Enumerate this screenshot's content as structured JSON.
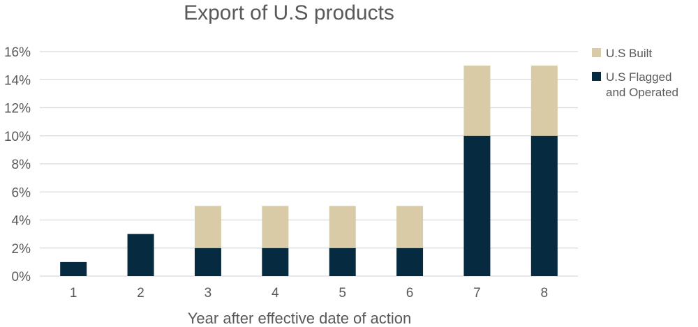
{
  "chart_data": {
    "type": "bar",
    "stacked": true,
    "title": "Export of U.S products",
    "xlabel": "Year after effective date of action",
    "ylabel": "",
    "categories": [
      "1",
      "2",
      "3",
      "4",
      "5",
      "6",
      "7",
      "8"
    ],
    "series": [
      {
        "name": "U.S Flagged and Operated",
        "values": [
          1,
          3,
          2,
          2,
          2,
          2,
          10,
          10
        ],
        "color": "#062a40"
      },
      {
        "name": "U.S Built",
        "values": [
          0,
          0,
          3,
          3,
          3,
          3,
          5,
          5
        ],
        "color": "#d8cba5"
      }
    ],
    "ylim": [
      0,
      16
    ],
    "yticks": [
      "0%",
      "2%",
      "4%",
      "6%",
      "8%",
      "10%",
      "12%",
      "14%",
      "16%"
    ],
    "grid": true,
    "legend_position": "right"
  },
  "legend": {
    "items": [
      {
        "label_lines": [
          "U.S Built"
        ],
        "color": "#d8cba5"
      },
      {
        "label_lines": [
          "U.S Flagged",
          "and Operated"
        ],
        "color": "#062a40"
      }
    ]
  }
}
